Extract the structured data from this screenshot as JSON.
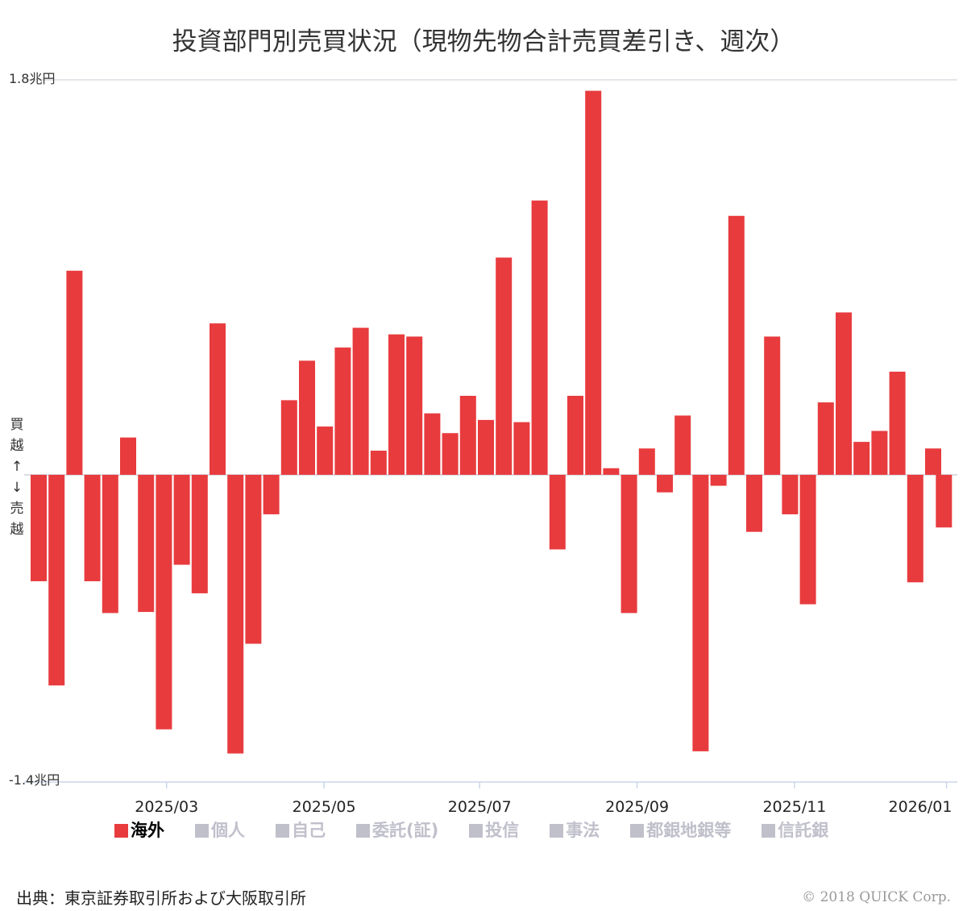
{
  "chart_data": {
    "type": "bar",
    "title": "投資部門別売買状況（現物先物合計売買差引き、週次）",
    "ylabel_top": "1.8兆円",
    "ylabel_bottom": "-1.4兆円",
    "ylim": [
      -1.4,
      1.8
    ],
    "unit": "兆円",
    "side_label_up": [
      "買",
      "越",
      "↑"
    ],
    "side_label_down": [
      "↓",
      "売",
      "越"
    ],
    "x_tick_labels": [
      {
        "label": "2025/03",
        "week": 7.6
      },
      {
        "label": "2025/05",
        "week": 16.4
      },
      {
        "label": "2025/07",
        "week": 25.1
      },
      {
        "label": "2025/09",
        "week": 33.9
      },
      {
        "label": "2025/11",
        "week": 42.7
      },
      {
        "label": "2026/01",
        "week": 51.2
      }
    ],
    "series": [
      {
        "name": "海外",
        "color": "#e83b3e",
        "x": [
          0,
          1,
          2,
          3,
          4,
          5,
          6,
          7,
          8,
          9,
          10,
          11,
          12,
          13,
          14,
          15,
          16,
          17,
          18,
          19,
          20,
          21,
          22,
          23,
          24,
          25,
          26,
          27,
          28,
          29,
          30,
          31,
          32,
          33,
          34,
          35,
          36,
          37,
          38,
          39,
          40,
          41,
          42,
          43,
          44,
          45,
          46,
          47,
          48,
          49,
          50,
          50.6
        ],
        "values": [
          -0.485,
          -0.96,
          0.93,
          -0.485,
          -0.63,
          0.17,
          -0.625,
          -1.16,
          -0.41,
          -0.54,
          0.69,
          -1.27,
          -0.77,
          -0.18,
          0.34,
          0.52,
          0.22,
          0.58,
          0.67,
          0.11,
          0.64,
          0.63,
          0.28,
          0.19,
          0.36,
          0.25,
          0.99,
          0.24,
          1.25,
          -0.34,
          0.36,
          1.75,
          0.03,
          -0.63,
          0.12,
          -0.08,
          0.27,
          -1.26,
          -0.05,
          1.18,
          -0.26,
          0.63,
          -0.18,
          -0.59,
          0.33,
          0.74,
          0.15,
          0.2,
          0.47,
          -0.49,
          0.12,
          -0.24
        ]
      }
    ],
    "legend": [
      {
        "label": "海外",
        "active": true
      },
      {
        "label": "個人",
        "active": false
      },
      {
        "label": "自己",
        "active": false
      },
      {
        "label": "委託(証)",
        "active": false
      },
      {
        "label": "投信",
        "active": false
      },
      {
        "label": "事法",
        "active": false
      },
      {
        "label": "都銀地銀等",
        "active": false
      },
      {
        "label": "信託銀",
        "active": false
      }
    ],
    "legend_position": "bottom",
    "inactive_color": "#c0c0cb"
  },
  "source": "出典：東京証券取引所および大阪取引所",
  "copyright": "© 2018 QUICK Corp."
}
